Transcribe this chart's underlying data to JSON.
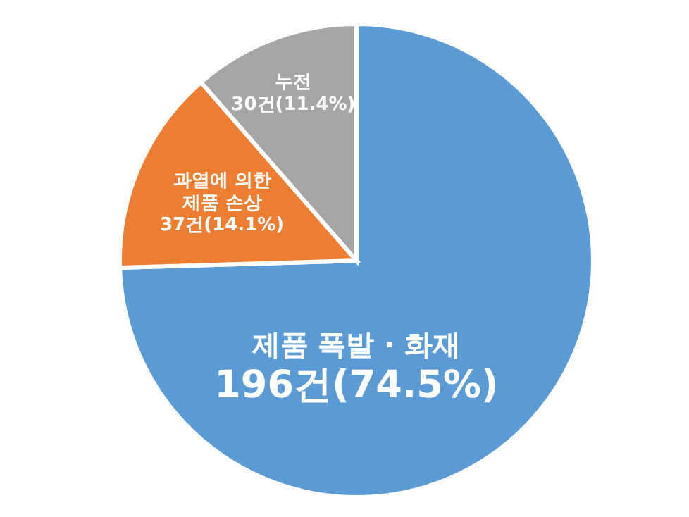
{
  "chart_data": {
    "type": "pie",
    "categories": [
      "제품 폭발 · 화재",
      "과열에 의한 제품 손상",
      "누전"
    ],
    "values": [
      196,
      37,
      30
    ],
    "colors": [
      "#5b9bd5",
      "#ed7d31",
      "#a5a5a5"
    ],
    "value_labels": [
      "196건(74.5%)",
      "37건(14.1%)",
      "30건(11.4%)"
    ],
    "legend": false
  }
}
